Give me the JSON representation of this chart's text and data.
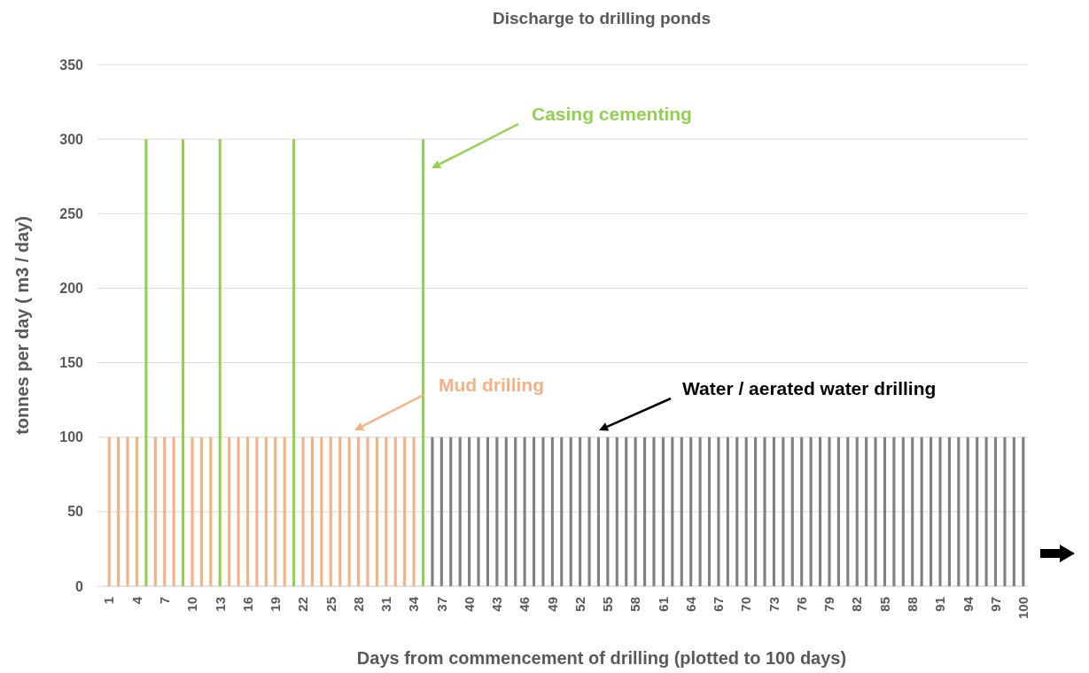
{
  "chart_data": {
    "type": "bar",
    "title": "Discharge to drilling ponds",
    "xlabel": "Days from commencement of drilling (plotted to 100 days)",
    "ylabel": "tonnes per day ( m3 / day)",
    "categories": [
      "1",
      null,
      null,
      "4",
      null,
      null,
      "7",
      null,
      null,
      "10",
      null,
      null,
      "13",
      null,
      null,
      "16",
      null,
      null,
      "19",
      null,
      null,
      "22",
      null,
      null,
      "25",
      null,
      null,
      "28",
      null,
      null,
      "31",
      null,
      null,
      "34",
      null,
      null,
      "37",
      null,
      null,
      "40",
      null,
      null,
      "43",
      null,
      null,
      "46",
      null,
      null,
      "49",
      null,
      null,
      "52",
      null,
      null,
      "55",
      null,
      null,
      "58",
      null,
      null,
      "61",
      null,
      null,
      "64",
      null,
      null,
      "67",
      null,
      null,
      "70",
      null,
      null,
      "73",
      null,
      null,
      "76",
      null,
      null,
      "79",
      null,
      null,
      "82",
      null,
      null,
      "85",
      null,
      null,
      "88",
      null,
      null,
      "91",
      null,
      null,
      "94",
      null,
      null,
      "97",
      null,
      null,
      "100"
    ],
    "series": [
      {
        "name": "Mud drilling",
        "color": "#f4b183",
        "values": [
          100,
          100,
          100,
          100,
          null,
          100,
          100,
          100,
          null,
          100,
          100,
          100,
          null,
          100,
          100,
          100,
          100,
          100,
          100,
          100,
          null,
          100,
          100,
          100,
          100,
          100,
          100,
          100,
          100,
          100,
          100,
          100,
          100,
          100,
          null,
          null,
          null,
          null,
          null,
          null,
          null,
          null,
          null,
          null,
          null,
          null,
          null,
          null,
          null,
          null,
          null,
          null,
          null,
          null,
          null,
          null,
          null,
          null,
          null,
          null,
          null,
          null,
          null,
          null,
          null,
          null,
          null,
          null,
          null,
          null,
          null,
          null,
          null,
          null,
          null,
          null,
          null,
          null,
          null,
          null,
          null,
          null,
          null,
          null,
          null,
          null,
          null,
          null,
          null,
          null,
          null,
          null,
          null,
          null,
          null,
          null,
          null,
          null,
          null,
          null
        ]
      },
      {
        "name": "Casing cementing",
        "color": "#92d050",
        "values": [
          null,
          null,
          null,
          null,
          300,
          null,
          null,
          null,
          300,
          null,
          null,
          null,
          300,
          null,
          null,
          null,
          null,
          null,
          null,
          null,
          300,
          null,
          null,
          null,
          null,
          null,
          null,
          null,
          null,
          null,
          null,
          null,
          null,
          null,
          300,
          null,
          null,
          null,
          null,
          null,
          null,
          null,
          null,
          null,
          null,
          null,
          null,
          null,
          null,
          null,
          null,
          null,
          null,
          null,
          null,
          null,
          null,
          null,
          null,
          null,
          null,
          null,
          null,
          null,
          null,
          null,
          null,
          null,
          null,
          null,
          null,
          null,
          null,
          null,
          null,
          null,
          null,
          null,
          null,
          null,
          null,
          null,
          null,
          null,
          null,
          null,
          null,
          null,
          null,
          null,
          null,
          null,
          null,
          null,
          null,
          null,
          null,
          null,
          null,
          null
        ]
      },
      {
        "name": "Water / aerated water drilling",
        "color": "#808080",
        "values": [
          null,
          null,
          null,
          null,
          null,
          null,
          null,
          null,
          null,
          null,
          null,
          null,
          null,
          null,
          null,
          null,
          null,
          null,
          null,
          null,
          null,
          null,
          null,
          null,
          null,
          null,
          null,
          null,
          null,
          null,
          null,
          null,
          null,
          null,
          null,
          100,
          100,
          100,
          100,
          100,
          100,
          100,
          100,
          100,
          100,
          100,
          100,
          100,
          100,
          100,
          100,
          100,
          100,
          100,
          100,
          100,
          100,
          100,
          100,
          100,
          100,
          100,
          100,
          100,
          100,
          100,
          100,
          100,
          100,
          100,
          100,
          100,
          100,
          100,
          100,
          100,
          100,
          100,
          100,
          100,
          100,
          100,
          100,
          100,
          100,
          100,
          100,
          100,
          100,
          100,
          100,
          100,
          100,
          100,
          100,
          100,
          100,
          100,
          100,
          100
        ]
      }
    ],
    "ylim": [
      0,
      350
    ],
    "yticks": [
      0,
      50,
      100,
      150,
      200,
      250,
      300,
      350
    ],
    "grid": "y"
  }
}
